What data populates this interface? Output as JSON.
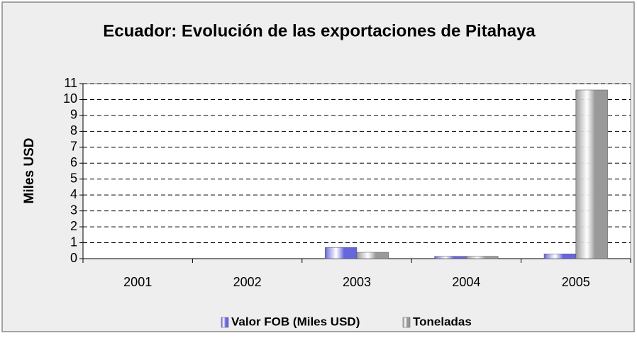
{
  "chart_data": {
    "type": "bar",
    "title": "Ecuador: Evolución de las exportaciones de Pitahaya",
    "y_label": "Miles USD",
    "categories": [
      "2001",
      "2002",
      "2003",
      "2004",
      "2005"
    ],
    "series": [
      {
        "name": "Valor FOB (Miles USD)",
        "color": "#6666dd",
        "values": [
          0,
          0,
          0.7,
          0.15,
          0.3
        ]
      },
      {
        "name": "Toneladas",
        "color": "#999999",
        "values": [
          0,
          0,
          0.4,
          0.15,
          10.6
        ]
      }
    ],
    "ylim": [
      0,
      11
    ],
    "yticks": [
      0,
      1,
      2,
      3,
      4,
      5,
      6,
      7,
      8,
      9,
      10,
      11
    ],
    "grid": true,
    "legend": "bottom"
  }
}
